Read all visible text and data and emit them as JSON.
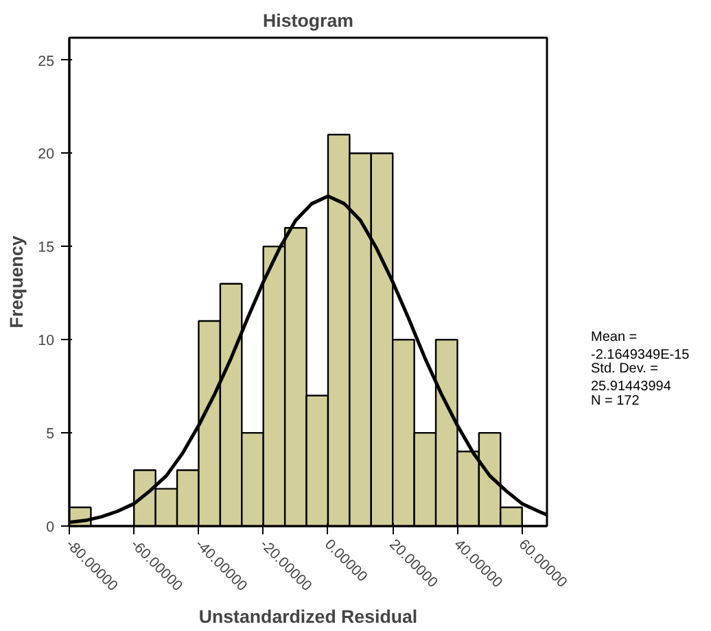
{
  "chart_data": {
    "type": "histogram",
    "title": "Histogram",
    "xlabel": "Unstandardized Residual",
    "ylabel": "Frequency",
    "bins": [
      -80,
      -73.333,
      -66.667,
      -60,
      -53.333,
      -46.667,
      -40,
      -33.333,
      -26.667,
      -20,
      -13.333,
      -6.667,
      0,
      6.667,
      13.333,
      20,
      26.667,
      33.333,
      40,
      46.667,
      53.333,
      60
    ],
    "values": [
      1,
      0,
      0,
      3,
      2,
      3,
      11,
      13,
      5,
      15,
      16,
      7,
      21,
      20,
      20,
      10,
      5,
      10,
      4,
      5,
      1
    ],
    "color": "#d3cf9b",
    "series": [
      {
        "type": "line",
        "color": "#000000",
        "x": [
          -80,
          -75,
          -70,
          -65,
          -60,
          -55,
          -50,
          -45,
          -40,
          -35,
          -30,
          -25,
          -20,
          -15,
          -10,
          -5,
          0,
          5,
          10,
          15,
          20,
          25,
          30,
          35,
          40,
          45,
          50,
          55,
          60,
          65,
          67.7
        ],
        "values": [
          0.2,
          0.3,
          0.5,
          0.8,
          1.2,
          1.9,
          2.7,
          3.9,
          5.4,
          7.1,
          9.0,
          11.1,
          13.1,
          14.9,
          16.4,
          17.3,
          17.7,
          17.3,
          16.4,
          14.9,
          13.1,
          11.1,
          9.0,
          7.1,
          5.4,
          3.9,
          2.7,
          1.9,
          1.2,
          0.8,
          0.6
        ]
      }
    ],
    "xlim": [
      -80,
      67.7
    ],
    "ylim": [
      0,
      26.2
    ],
    "xticks": [
      {
        "value": -80,
        "label": "-80.00000"
      },
      {
        "value": -60,
        "label": "-60.00000"
      },
      {
        "value": -40,
        "label": "-40.00000"
      },
      {
        "value": -20,
        "label": "-20.00000"
      },
      {
        "value": 0,
        "label": "0.00000"
      },
      {
        "value": 20,
        "label": "20.00000"
      },
      {
        "value": 40,
        "label": "40.00000"
      },
      {
        "value": 60,
        "label": "60.00000"
      }
    ],
    "yticks": [
      0,
      5,
      10,
      15,
      20,
      25
    ],
    "annotations": [
      "Mean = -2.1649349E-15",
      "Std. Dev. = 25.91443994",
      "N = 172"
    ],
    "grid": false
  }
}
